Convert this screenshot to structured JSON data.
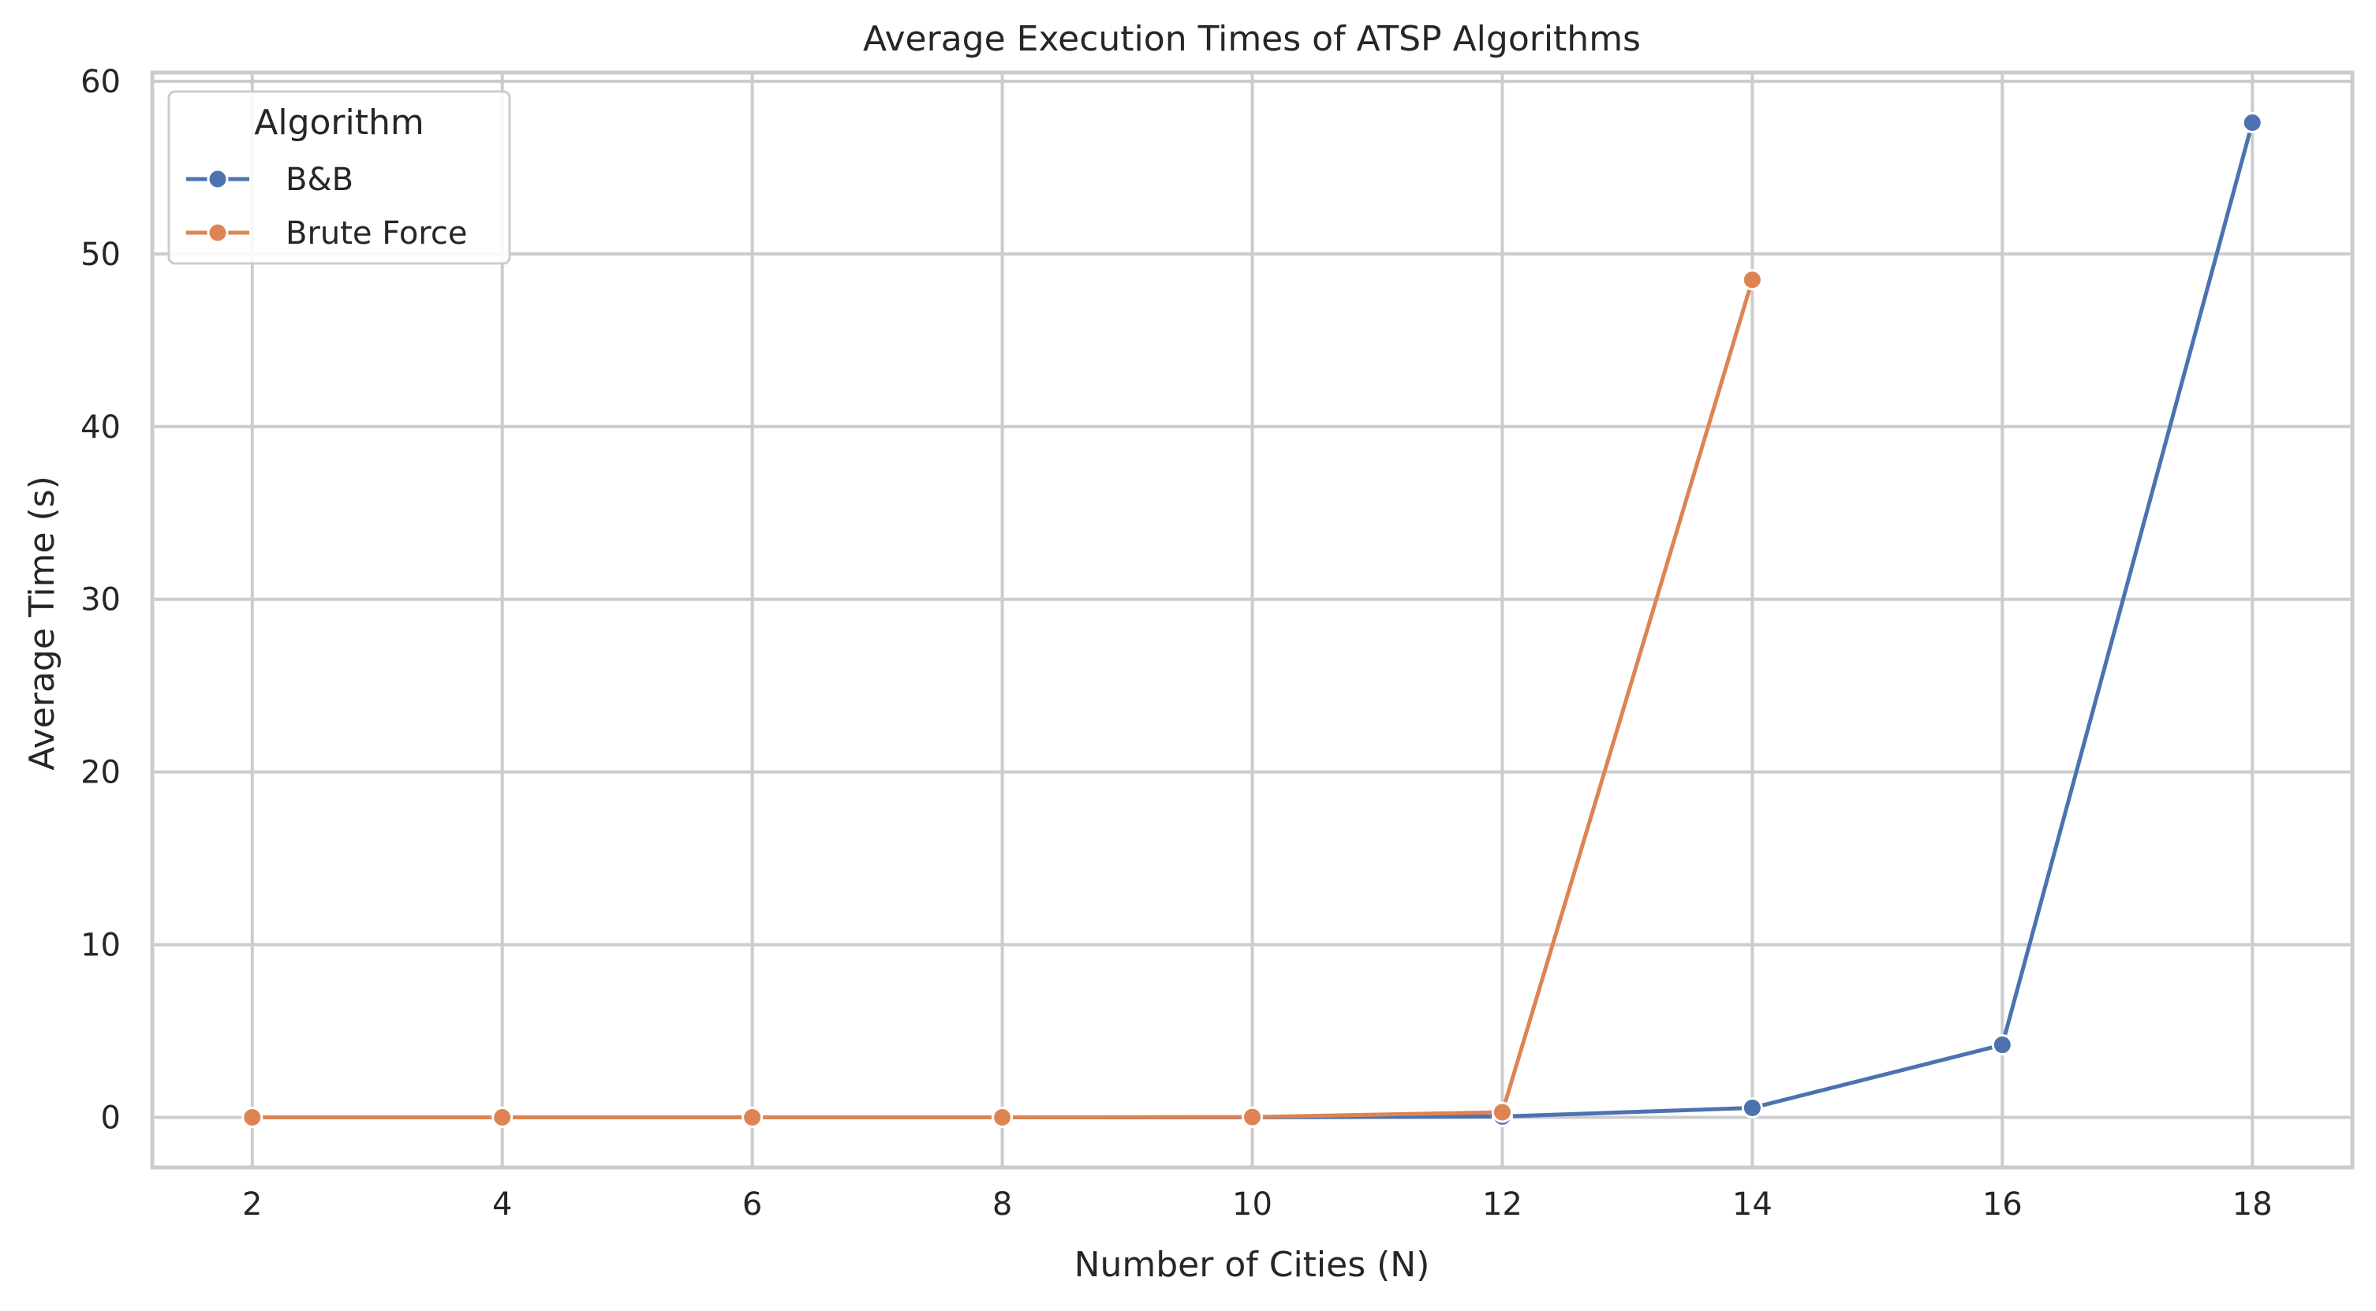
{
  "chart_data": {
    "type": "line",
    "title": "Average Execution Times of ATSP Algorithms",
    "xlabel": "Number of Cities (N)",
    "ylabel": "Average Time (s)",
    "x": [
      2,
      4,
      6,
      8,
      10,
      12,
      14,
      16,
      18
    ],
    "xticks": [
      "2",
      "4",
      "6",
      "8",
      "10",
      "12",
      "14",
      "16",
      "18"
    ],
    "yticks": [
      "0",
      "10",
      "20",
      "30",
      "40",
      "50",
      "60"
    ],
    "xlim": [
      1.2,
      18.8
    ],
    "ylim": [
      -2.9,
      60.5
    ],
    "grid": true,
    "legend": {
      "title": "Algorithm",
      "position": "top-left"
    },
    "series": [
      {
        "name": "B&B",
        "color": "#4c72b0",
        "x": [
          2,
          4,
          6,
          8,
          10,
          12,
          14,
          16,
          18
        ],
        "values": [
          0.0,
          0.0,
          0.0,
          0.0,
          0.0,
          0.05,
          0.55,
          4.2,
          57.6
        ]
      },
      {
        "name": "Brute Force",
        "color": "#dd8452",
        "x": [
          2,
          4,
          6,
          8,
          10,
          12,
          14
        ],
        "values": [
          0.0,
          0.0,
          0.0,
          0.0,
          0.02,
          0.3,
          48.5
        ]
      }
    ]
  }
}
